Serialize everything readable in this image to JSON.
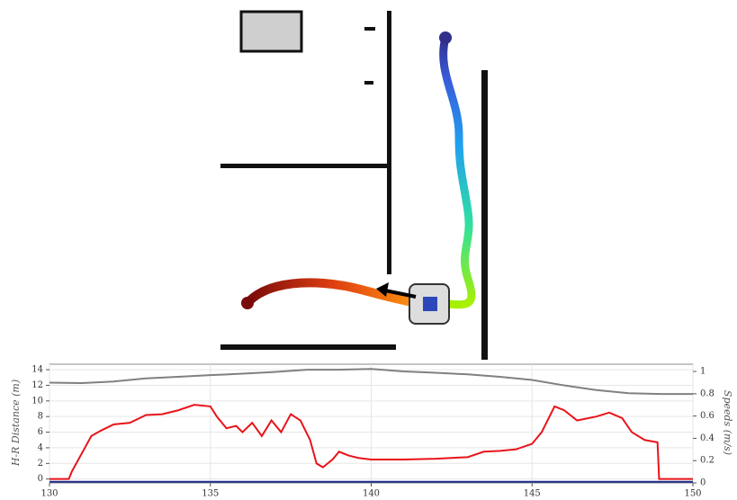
{
  "chart_data": {
    "type": "line",
    "y_label": "H-R Distance (m)",
    "y2_label": "Speeds (m/s)",
    "xlim": [
      130,
      150
    ],
    "xticks": [
      130,
      135,
      140,
      145,
      150
    ],
    "ylim": [
      -0.5,
      14.7
    ],
    "yticks": [
      0,
      2,
      4,
      6,
      8,
      10,
      12,
      14
    ],
    "y2lim": [
      0,
      1.065
    ],
    "y2ticks": [
      0,
      0.2,
      0.4,
      0.6,
      0.8,
      1
    ],
    "grid": true,
    "series": [
      {
        "color": "#e8141b",
        "x": [
          130.0,
          130.6,
          130.7,
          130.9,
          131.1,
          131.3,
          131.6,
          132.0,
          132.5,
          133.0,
          133.5,
          134.0,
          134.5,
          135.0,
          135.2,
          135.5,
          135.8,
          136.0,
          136.3,
          136.6,
          136.9,
          137.2,
          137.5,
          137.8,
          138.1,
          138.3,
          138.5,
          138.8,
          139.0,
          139.3,
          139.6,
          140.0,
          141.0,
          142.0,
          143.0,
          143.5,
          144.0,
          144.5,
          145.0,
          145.3,
          145.7,
          146.0,
          146.4,
          147.0,
          147.4,
          147.8,
          148.1,
          148.5,
          148.9,
          148.95,
          150.0
        ],
        "values": [
          0,
          0,
          1,
          2.5,
          4,
          5.5,
          6.2,
          7,
          7.2,
          8.2,
          8.3,
          8.8,
          9.5,
          9.3,
          8,
          6.5,
          6.8,
          6,
          7.2,
          5.5,
          7.5,
          6,
          8.3,
          7.5,
          5,
          2,
          1.5,
          2.5,
          3.5,
          3,
          2.7,
          2.5,
          2.5,
          2.6,
          2.8,
          3.5,
          3.6,
          3.8,
          4.5,
          6,
          9.3,
          8.8,
          7.5,
          8,
          8.5,
          7.8,
          6,
          5,
          4.7,
          0,
          0
        ]
      },
      {
        "color": "#808080",
        "axis": "y2",
        "x": [
          130,
          131,
          132,
          133,
          134,
          135,
          136,
          137,
          138,
          139,
          140,
          141,
          142,
          143,
          144,
          145,
          146,
          147,
          148,
          149,
          150
        ],
        "values": [
          0.9,
          0.896,
          0.91,
          0.938,
          0.952,
          0.967,
          0.98,
          0.995,
          1.016,
          1.016,
          1.023,
          1.0,
          0.988,
          0.974,
          0.952,
          0.924,
          0.875,
          0.833,
          0.805,
          0.798,
          0.798
        ]
      },
      {
        "color": "#1f2a8c",
        "axis": "y2",
        "x": [
          130,
          150
        ],
        "values": [
          0.01,
          0.01
        ]
      }
    ]
  }
}
